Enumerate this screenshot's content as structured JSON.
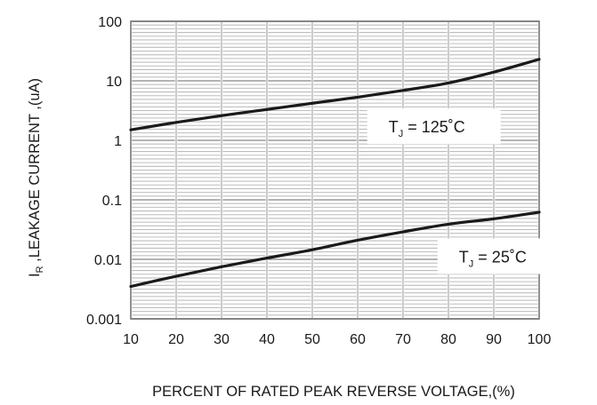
{
  "chart_data": {
    "type": "line",
    "title": "",
    "xlabel": "PERCENT OF RATED PEAK REVERSE VOLTAGE,(%)",
    "ylabel": {
      "symbol": "I",
      "subscript": "R",
      "text": " ,LEAKAGE  CURRENT ,(uA)"
    },
    "xlim": [
      10,
      100
    ],
    "ylim": [
      0.001,
      100
    ],
    "yscale": "log",
    "grid": true,
    "x_ticks": [
      10,
      20,
      30,
      40,
      50,
      60,
      70,
      80,
      90,
      100
    ],
    "x_tick_labels": [
      "10",
      "20",
      "30",
      "40",
      "50",
      "60",
      "70",
      "80",
      "90",
      "100"
    ],
    "y_ticks": [
      0.001,
      0.01,
      0.1,
      1,
      10,
      100
    ],
    "y_tick_labels": [
      "0.001",
      "0.01",
      "0.1",
      "1",
      "10",
      "100"
    ],
    "series": [
      {
        "name": "TJ = 125°C",
        "label": {
          "prefix": "T",
          "subscript": "J",
          "suffix": " = 125˚C"
        },
        "x": [
          10,
          20,
          30,
          40,
          50,
          60,
          70,
          80,
          90,
          100
        ],
        "values": [
          1.5,
          2.0,
          2.6,
          3.3,
          4.2,
          5.3,
          6.9,
          9.2,
          14.0,
          23.0
        ]
      },
      {
        "name": "TJ = 25°C",
        "label": {
          "prefix": "T",
          "subscript": "J",
          "suffix": " = 25˚C"
        },
        "x": [
          10,
          20,
          30,
          40,
          50,
          60,
          70,
          80,
          90,
          100
        ],
        "values": [
          0.0035,
          0.0052,
          0.0075,
          0.0105,
          0.0145,
          0.021,
          0.029,
          0.039,
          0.048,
          0.062
        ]
      }
    ],
    "colors": {
      "line": "#1a1a1a",
      "grid_major": "#9a9a9a",
      "grid_minor": "#bdbdbd",
      "axis": "#6e6e6e"
    }
  }
}
